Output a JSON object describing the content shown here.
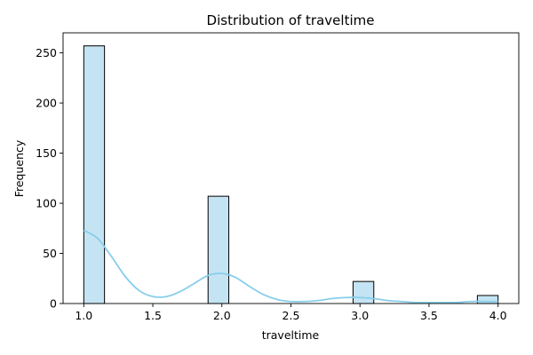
{
  "chart_data": {
    "type": "bar",
    "title": "Distribution of traveltime",
    "xlabel": "traveltime",
    "ylabel": "Frequency",
    "xlim": [
      0.85,
      4.15
    ],
    "ylim": [
      0,
      270
    ],
    "xticks": [
      1.0,
      1.5,
      2.0,
      2.5,
      3.0,
      3.5,
      4.0
    ],
    "xtick_labels": [
      "1.0",
      "1.5",
      "2.0",
      "2.5",
      "3.0",
      "3.5",
      "4.0"
    ],
    "yticks": [
      0,
      50,
      100,
      150,
      200,
      250
    ],
    "ytick_labels": [
      "0",
      "50",
      "100",
      "150",
      "200",
      "250"
    ],
    "bin_width": 0.15,
    "bins": [
      {
        "start": 1.0,
        "value": 257
      },
      {
        "start": 1.9,
        "value": 107
      },
      {
        "start": 2.95,
        "value": 22
      },
      {
        "start": 3.85,
        "value": 8
      }
    ],
    "kde": {
      "x": [
        1.0,
        1.1,
        1.2,
        1.3,
        1.4,
        1.5,
        1.6,
        1.7,
        1.8,
        1.9,
        2.0,
        2.1,
        2.2,
        2.3,
        2.4,
        2.5,
        2.6,
        2.7,
        2.8,
        2.9,
        3.0,
        3.1,
        3.2,
        3.3,
        3.4,
        3.5,
        3.6,
        3.7,
        3.8,
        3.9,
        4.0
      ],
      "y": [
        73,
        65,
        47,
        27,
        13,
        7,
        7,
        12,
        20,
        28,
        30,
        26,
        17,
        9,
        4,
        2,
        2,
        3,
        5,
        6,
        6,
        5,
        3,
        2,
        1,
        1,
        1,
        1,
        2,
        2,
        2
      ]
    },
    "colors": {
      "bar_fill": "#c5e4f3",
      "bar_edge": "#000000",
      "kde_line": "#87ceeb"
    }
  }
}
